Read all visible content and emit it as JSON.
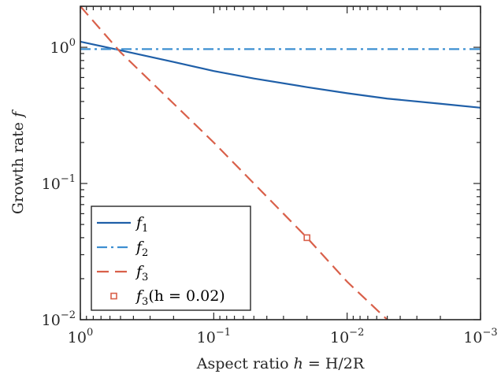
{
  "chart_data": {
    "type": "line",
    "x_scale": "log",
    "y_scale": "log",
    "x_reversed": true,
    "xlim": [
      1,
      0.001
    ],
    "ylim": [
      0.01,
      2
    ],
    "grid": false,
    "legend_position": "bottom-left",
    "xlabel": {
      "text": "Aspect ratio ",
      "math_var": "h",
      "math_rest": " = H/2R"
    },
    "ylabel": {
      "text": "Growth rate ",
      "math_var": "f"
    },
    "x_ticks": [
      {
        "value": 1,
        "base": "10",
        "exp": "0"
      },
      {
        "value": 0.1,
        "base": "10",
        "exp": "−1"
      },
      {
        "value": 0.01,
        "base": "10",
        "exp": "−2"
      },
      {
        "value": 0.001,
        "base": "10",
        "exp": "−3"
      }
    ],
    "y_ticks": [
      {
        "value": 1,
        "base": "10",
        "exp": "0"
      },
      {
        "value": 0.1,
        "base": "10",
        "exp": "−1"
      },
      {
        "value": 0.01,
        "base": "10",
        "exp": "−2"
      }
    ],
    "series": [
      {
        "name": "f1",
        "label_var": "f",
        "label_sub": "1",
        "style": "solid",
        "color": "#1f5fa8",
        "x": [
          1,
          0.5,
          0.2,
          0.1,
          0.05,
          0.02,
          0.01,
          0.005,
          0.002,
          0.001
        ],
        "y": [
          1.1,
          0.95,
          0.78,
          0.67,
          0.59,
          0.51,
          0.46,
          0.42,
          0.385,
          0.36
        ]
      },
      {
        "name": "f2",
        "label_var": "f",
        "label_sub": "2",
        "style": "dashdot",
        "color": "#3d8fd1",
        "x": [
          1,
          0.001
        ],
        "y": [
          0.97,
          0.97
        ]
      },
      {
        "name": "f3",
        "label_var": "f",
        "label_sub": "3",
        "style": "dashed",
        "color": "#d9604a",
        "x": [
          1,
          0.5,
          0.1,
          0.02,
          0.01,
          0.005
        ],
        "y": [
          2.0,
          0.92,
          0.2,
          0.04,
          0.019,
          0.01
        ]
      }
    ],
    "markers": [
      {
        "name": "f3(h=0.02)",
        "label_var": "f",
        "label_sub": "3",
        "label_rest": "(h = 0.02)",
        "marker": "square",
        "color": "#d9604a",
        "x": 0.02,
        "y": 0.04
      }
    ]
  }
}
